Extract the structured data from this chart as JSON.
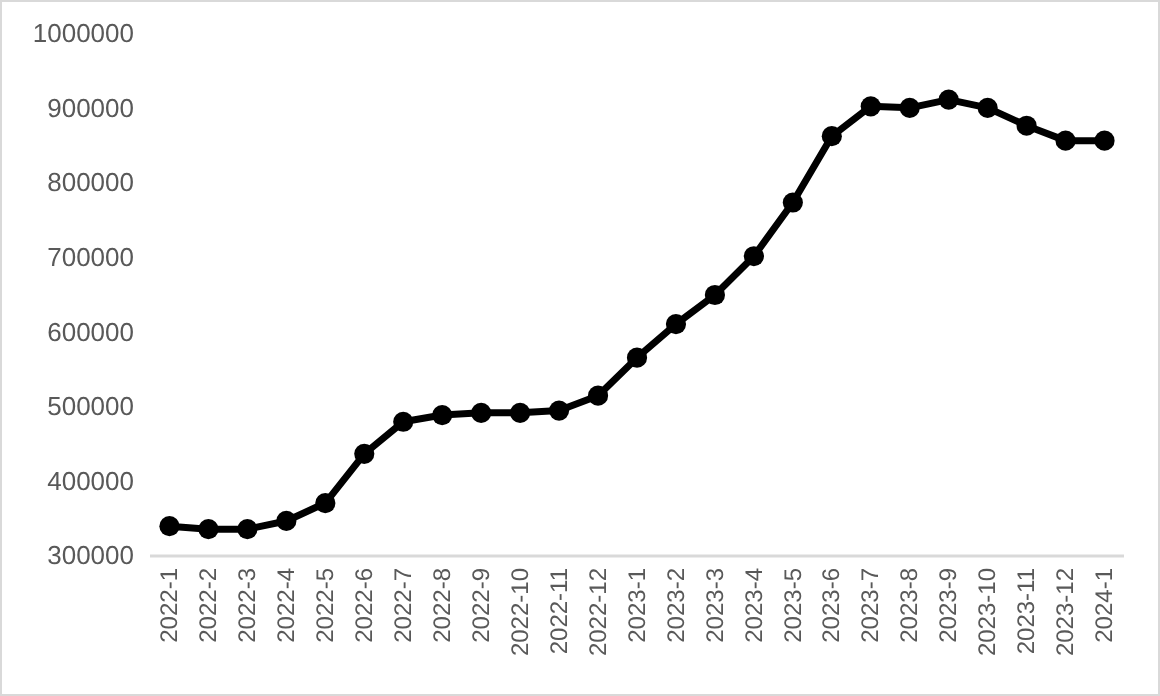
{
  "chart_data": {
    "type": "line",
    "categories": [
      "2022-1",
      "2022-2",
      "2022-3",
      "2022-4",
      "2022-5",
      "2022-6",
      "2022-7",
      "2022-8",
      "2022-9",
      "2022-10",
      "2022-11",
      "2022-12",
      "2023-1",
      "2023-2",
      "2023-3",
      "2023-4",
      "2023-5",
      "2023-6",
      "2023-7",
      "2023-8",
      "2023-9",
      "2023-10",
      "2023-11",
      "2023-12",
      "2024-1"
    ],
    "series": [
      {
        "color": "#000000",
        "values": [
          340000,
          336000,
          336000,
          347000,
          371000,
          437000,
          480000,
          489000,
          492000,
          492000,
          495000,
          515000,
          566000,
          611000,
          650000,
          702000,
          774000,
          863000,
          903000,
          901000,
          912000,
          901000,
          877000,
          857000,
          857000
        ]
      }
    ],
    "ylim": [
      300000,
      1000000
    ],
    "yticks": [
      300000,
      400000,
      500000,
      600000,
      700000,
      800000,
      900000,
      1000000
    ],
    "grid": false,
    "marker": "circle",
    "line_style": "solid"
  }
}
